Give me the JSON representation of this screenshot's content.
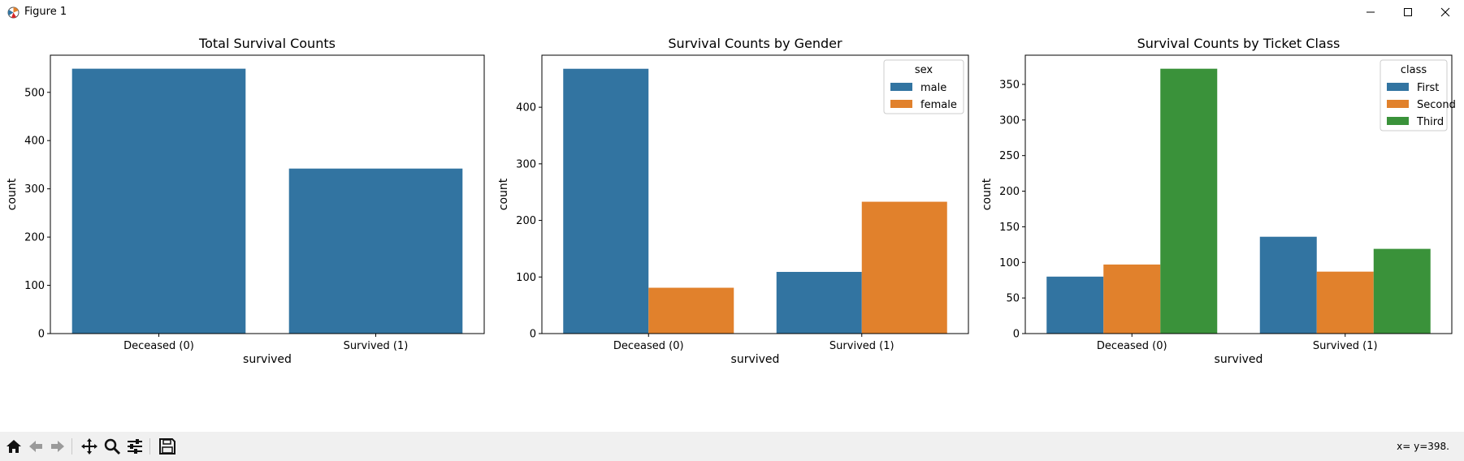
{
  "window": {
    "title": "Figure 1",
    "icons": [
      "matplotlib-app-icon",
      "minimize-icon",
      "maximize-icon",
      "close-icon"
    ]
  },
  "toolbar": {
    "icons": [
      "home-icon",
      "back-arrow-icon",
      "forward-arrow-icon",
      "pan-move-icon",
      "zoom-magnifier-icon",
      "configure-subplots-icon",
      "save-floppy-icon"
    ],
    "coords_text": "x= y=398."
  },
  "colors": {
    "blue": "#3274a1",
    "orange": "#e1812c",
    "green": "#3a923a"
  },
  "chart_data": [
    {
      "type": "bar",
      "title": "Total Survival Counts",
      "xlabel": "survived",
      "ylabel": "count",
      "categories": [
        "Deceased (0)",
        "Survived (1)"
      ],
      "values": [
        549,
        342
      ],
      "ylim": [
        0,
        577
      ],
      "yticks": [
        0,
        100,
        200,
        300,
        400,
        500
      ],
      "color": "#3274a1",
      "grid": false
    },
    {
      "type": "bar",
      "title": "Survival Counts by Gender",
      "xlabel": "survived",
      "ylabel": "count",
      "categories": [
        "Deceased (0)",
        "Survived (1)"
      ],
      "series": [
        {
          "name": "male",
          "values": [
            468,
            109
          ],
          "color": "#3274a1"
        },
        {
          "name": "female",
          "values": [
            81,
            233
          ],
          "color": "#e1812c"
        }
      ],
      "ylim": [
        0,
        492
      ],
      "yticks": [
        0,
        100,
        200,
        300,
        400
      ],
      "legend": {
        "title": "sex",
        "placement": "top-right"
      },
      "grid": false
    },
    {
      "type": "bar",
      "title": "Survival Counts by Ticket Class",
      "xlabel": "survived",
      "ylabel": "count",
      "categories": [
        "Deceased (0)",
        "Survived (1)"
      ],
      "series": [
        {
          "name": "First",
          "values": [
            80,
            136
          ],
          "color": "#3274a1"
        },
        {
          "name": "Second",
          "values": [
            97,
            87
          ],
          "color": "#e1812c"
        },
        {
          "name": "Third",
          "values": [
            372,
            119
          ],
          "color": "#3a923a"
        }
      ],
      "ylim": [
        0,
        391
      ],
      "yticks": [
        0,
        50,
        100,
        150,
        200,
        250,
        300,
        350
      ],
      "legend": {
        "title": "class",
        "placement": "top-right"
      },
      "grid": false
    }
  ]
}
